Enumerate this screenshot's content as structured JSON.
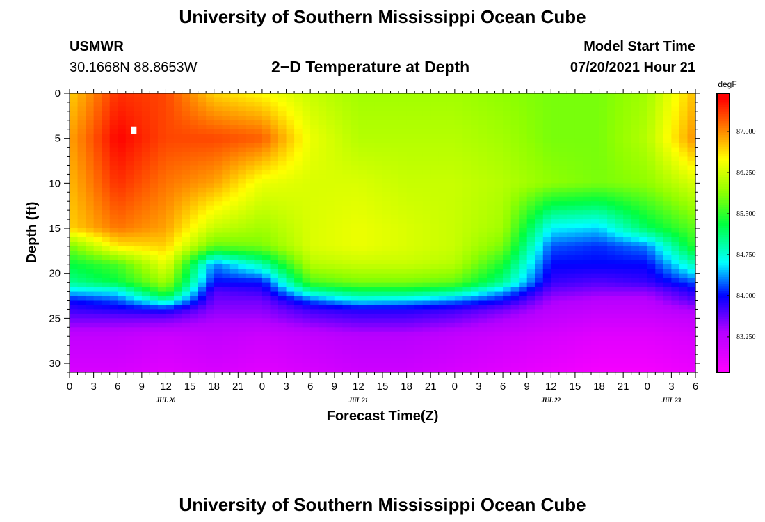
{
  "header": {
    "title": "University of Southern Mississippi Ocean Cube",
    "station": "USMWR",
    "coords": "30.1668N  88.8653W",
    "subtitle": "2−D Temperature at Depth",
    "start_label": "Model Start Time",
    "start_value": "07/20/2021 Hour 21"
  },
  "footer": {
    "title": "University of Southern Mississippi Ocean Cube"
  },
  "chart_data": {
    "type": "heatmap",
    "title": "2-D Temperature at Depth",
    "xlabel": "Forecast Time(Z)",
    "ylabel": "Depth (ft)",
    "xlim": [
      0,
      78
    ],
    "ylim": [
      0,
      31
    ],
    "x_ticks": [
      {
        "t": 0,
        "label": "0"
      },
      {
        "t": 3,
        "label": "3"
      },
      {
        "t": 6,
        "label": "6"
      },
      {
        "t": 9,
        "label": "9"
      },
      {
        "t": 12,
        "label": "12"
      },
      {
        "t": 15,
        "label": "15"
      },
      {
        "t": 18,
        "label": "18"
      },
      {
        "t": 21,
        "label": "21"
      },
      {
        "t": 24,
        "label": "0"
      },
      {
        "t": 27,
        "label": "3"
      },
      {
        "t": 30,
        "label": "6"
      },
      {
        "t": 33,
        "label": "9"
      },
      {
        "t": 36,
        "label": "12"
      },
      {
        "t": 39,
        "label": "15"
      },
      {
        "t": 42,
        "label": "18"
      },
      {
        "t": 45,
        "label": "21"
      },
      {
        "t": 48,
        "label": "0"
      },
      {
        "t": 51,
        "label": "3"
      },
      {
        "t": 54,
        "label": "6"
      },
      {
        "t": 57,
        "label": "9"
      },
      {
        "t": 60,
        "label": "12"
      },
      {
        "t": 63,
        "label": "15"
      },
      {
        "t": 66,
        "label": "18"
      },
      {
        "t": 69,
        "label": "21"
      },
      {
        "t": 72,
        "label": "0"
      },
      {
        "t": 75,
        "label": "3"
      },
      {
        "t": 78,
        "label": "6"
      }
    ],
    "y_ticks": [
      0,
      5,
      10,
      15,
      20,
      25,
      30
    ],
    "date_labels": [
      {
        "t": 12,
        "label": "JUL 20"
      },
      {
        "t": 36,
        "label": "JUL 21"
      },
      {
        "t": 60,
        "label": "JUL 22"
      },
      {
        "t": 75,
        "label": "JUL 23"
      }
    ],
    "colorbar": {
      "unit": "degF",
      "min": 82.6,
      "max": 87.7,
      "ticks": [
        {
          "value": 87.0,
          "label": "87.000"
        },
        {
          "value": 86.25,
          "label": "86.250"
        },
        {
          "value": 85.5,
          "label": "85.500"
        },
        {
          "value": 84.75,
          "label": "84.750"
        },
        {
          "value": 84.0,
          "label": "84.000"
        },
        {
          "value": 83.25,
          "label": "83.250"
        }
      ],
      "color_stops": [
        {
          "value": 82.6,
          "color": "#ff00ff"
        },
        {
          "value": 83.35,
          "color": "#b400ff"
        },
        {
          "value": 84.0,
          "color": "#0000ff"
        },
        {
          "value": 84.6,
          "color": "#00ffff"
        },
        {
          "value": 85.3,
          "color": "#00ff40"
        },
        {
          "value": 85.9,
          "color": "#90ff00"
        },
        {
          "value": 86.5,
          "color": "#ffff00"
        },
        {
          "value": 87.05,
          "color": "#ff8000"
        },
        {
          "value": 87.6,
          "color": "#ff0000"
        }
      ]
    },
    "time_hours": [
      0,
      6,
      12,
      18,
      24,
      30,
      36,
      42,
      48,
      54,
      60,
      66,
      72,
      78
    ],
    "depths_ft": [
      0,
      5,
      10,
      15,
      17,
      19,
      21,
      22,
      23,
      24,
      25,
      27,
      31
    ],
    "temperature_degF": [
      [
        86.7,
        87.4,
        87.3,
        86.7,
        86.5,
        86.2,
        86.0,
        86.0,
        86.0,
        85.9,
        85.8,
        85.8,
        86.0,
        86.8
      ],
      [
        86.9,
        87.6,
        87.3,
        87.3,
        87.2,
        86.4,
        86.1,
        86.1,
        86.1,
        86.0,
        85.8,
        85.8,
        86.1,
        87.0
      ],
      [
        86.8,
        87.4,
        87.1,
        86.9,
        86.4,
        86.3,
        86.3,
        86.2,
        86.2,
        86.1,
        85.9,
        85.8,
        85.9,
        86.3
      ],
      [
        86.7,
        87.1,
        86.9,
        86.2,
        86.0,
        86.3,
        86.4,
        86.3,
        86.2,
        86.0,
        84.6,
        84.5,
        85.2,
        85.7
      ],
      [
        85.8,
        86.6,
        86.7,
        85.7,
        85.8,
        86.3,
        86.4,
        86.3,
        86.2,
        85.8,
        84.2,
        84.1,
        84.3,
        85.5
      ],
      [
        85.3,
        85.6,
        86.4,
        84.3,
        84.9,
        86.1,
        86.2,
        86.2,
        86.1,
        85.4,
        84.0,
        84.0,
        84.0,
        84.9
      ],
      [
        85.0,
        85.3,
        86.0,
        84.0,
        84.0,
        85.6,
        85.8,
        85.8,
        85.7,
        85.0,
        83.8,
        83.7,
        83.8,
        84.2
      ],
      [
        84.5,
        84.6,
        85.6,
        83.7,
        83.8,
        84.9,
        85.2,
        85.2,
        85.0,
        84.4,
        83.6,
        83.5,
        83.5,
        83.9
      ],
      [
        84.0,
        84.2,
        84.9,
        83.6,
        83.6,
        84.2,
        84.6,
        84.5,
        84.3,
        84.0,
        83.4,
        83.3,
        83.3,
        83.7
      ],
      [
        83.8,
        83.9,
        84.0,
        83.5,
        83.5,
        83.8,
        83.9,
        83.9,
        83.8,
        83.6,
        83.3,
        83.2,
        83.2,
        83.4
      ],
      [
        83.6,
        83.6,
        83.6,
        83.4,
        83.4,
        83.6,
        83.7,
        83.7,
        83.6,
        83.4,
        83.2,
        83.1,
        83.1,
        83.2
      ],
      [
        83.2,
        83.2,
        83.1,
        83.2,
        83.1,
        83.2,
        83.3,
        83.3,
        83.2,
        83.1,
        83.0,
        82.9,
        82.9,
        83.0
      ],
      [
        83.0,
        83.0,
        82.9,
        83.0,
        82.9,
        83.0,
        83.1,
        83.1,
        83.0,
        82.9,
        82.8,
        82.7,
        82.7,
        82.8
      ]
    ],
    "marker": {
      "t": 8,
      "depth_ft": 4
    }
  }
}
